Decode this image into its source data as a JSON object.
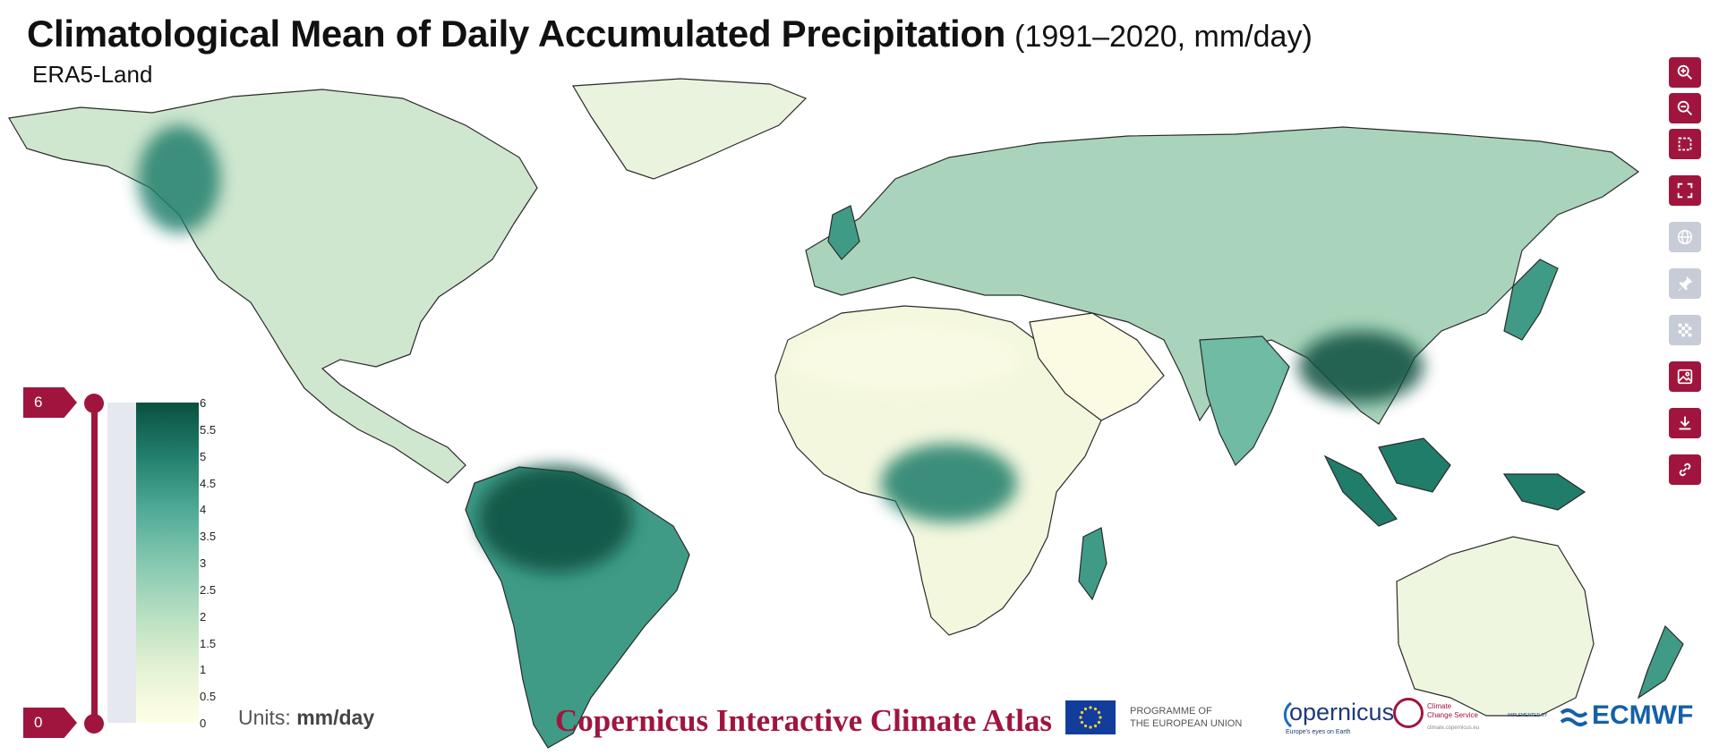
{
  "header": {
    "title": "Climatological Mean of Daily Accumulated Precipitation",
    "period": "(1991–2020, mm/day)",
    "dataset": "ERA5-Land"
  },
  "toolbar": {
    "buttons": [
      {
        "name": "zoom-in-button",
        "icon": "zoom-in-icon",
        "state": "active"
      },
      {
        "name": "zoom-out-button",
        "icon": "zoom-out-icon",
        "state": "active"
      },
      {
        "name": "zoom-to-extent-button",
        "icon": "select-region-icon",
        "state": "active"
      },
      {
        "name": "fullscreen-button",
        "icon": "fullscreen-icon",
        "state": "active"
      },
      {
        "name": "projection-button",
        "icon": "globe-icon",
        "state": "disabled"
      },
      {
        "name": "pin-button",
        "icon": "pin-icon",
        "state": "disabled"
      },
      {
        "name": "grid-button",
        "icon": "checkerboard-icon",
        "state": "disabled"
      },
      {
        "name": "image-export-button",
        "icon": "image-icon",
        "state": "active"
      },
      {
        "name": "download-button",
        "icon": "download-icon",
        "state": "active"
      },
      {
        "name": "share-link-button",
        "icon": "link-icon",
        "state": "active"
      }
    ]
  },
  "legend": {
    "max_label": "6",
    "min_label": "0",
    "ticks": [
      "6",
      "5.5",
      "5",
      "4.5",
      "4",
      "3.5",
      "3",
      "2.5",
      "2",
      "1.5",
      "1",
      "0.5",
      "0"
    ],
    "units_prefix": "Units:",
    "units_value": "mm/day",
    "range": [
      0,
      6
    ],
    "colors": [
      "#ffffe8",
      "#e4f2d3",
      "#b9e0c2",
      "#85c8b0",
      "#4ea996",
      "#21806d",
      "#0a4f3f"
    ]
  },
  "footer": {
    "atlas_title": "Copernicus Interactive Climate Atlas",
    "eu_line1": "PROGRAMME OF",
    "eu_line2": "THE EUROPEAN UNION",
    "copernicus": "opernicus",
    "copernicus_tagline": "Europe's eyes on Earth",
    "c3s_line1": "Climate",
    "c3s_line2": "Change Service",
    "c3s_url": "climate.copernicus.eu",
    "implemented_by": "IMPLEMENTED BY",
    "ecmwf": "ECMWF"
  },
  "colors": {
    "accent": "#a0153e",
    "disabled": "#c8ccd6",
    "land_dry": "#fbfbe4",
    "land_wet": "#0a4f3f",
    "coastline": "#2a2a2a"
  }
}
